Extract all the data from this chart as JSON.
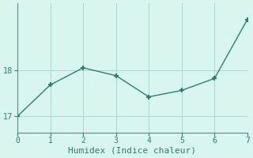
{
  "x": [
    0,
    1,
    2,
    3,
    4,
    5,
    6,
    7
  ],
  "y": [
    17.0,
    17.68,
    18.05,
    17.88,
    17.42,
    17.56,
    17.82,
    19.1
  ],
  "xlabel": "Humidex (Indice chaleur)",
  "ylabel": "",
  "xlim": [
    0,
    7
  ],
  "ylim": [
    16.65,
    19.45
  ],
  "yticks": [
    17,
    18
  ],
  "xticks": [
    0,
    1,
    2,
    3,
    4,
    5,
    6,
    7
  ],
  "line_color": "#2e7d71",
  "marker": "+",
  "marker_size": 5,
  "marker_lw": 1.5,
  "line_width": 1.0,
  "bg_color": "#d9f5f0",
  "grid_color": "#a8d8ce",
  "axis_color": "#5a8a82",
  "font_color": "#2e7d71",
  "font_size_tick": 7,
  "font_size_label": 8
}
